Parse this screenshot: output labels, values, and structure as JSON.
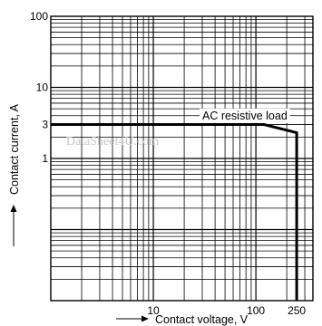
{
  "chart_data": {
    "type": "line",
    "xlabel": "Contact voltage, V",
    "ylabel": "Contact current, A",
    "x_scale": "log",
    "y_scale": "log",
    "xlim": [
      1,
      360
    ],
    "ylim": [
      0.01,
      100
    ],
    "grid": true,
    "x_tick_labels": [
      {
        "value": 10,
        "label": "10"
      },
      {
        "value": 100,
        "label": "100"
      },
      {
        "value": 250,
        "label": "250"
      }
    ],
    "y_tick_labels": [
      {
        "value": 100,
        "label": "100"
      },
      {
        "value": 10,
        "label": "10"
      },
      {
        "value": 3,
        "label": "3"
      },
      {
        "value": 1,
        "label": "1"
      }
    ],
    "series": [
      {
        "name": "AC resistive load",
        "x": [
          1,
          120,
          250,
          250
        ],
        "y": [
          3,
          3,
          2.3,
          0.01
        ]
      }
    ],
    "annotations": [
      {
        "text": "AC resistive load",
        "x": 30,
        "y": 3.55
      }
    ],
    "watermark": "DataSheet4U.com"
  }
}
